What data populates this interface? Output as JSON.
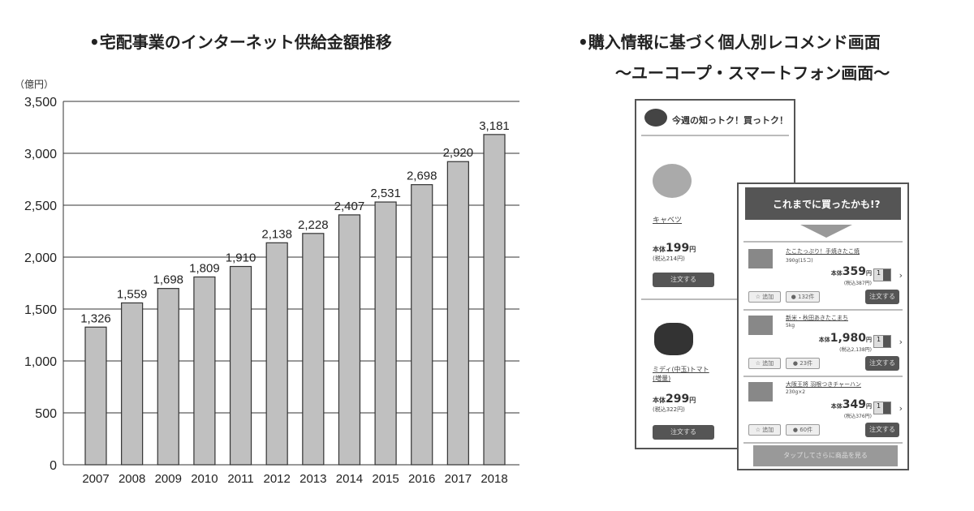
{
  "chart_data": {
    "type": "bar",
    "title": "•宅配事業のインターネット供給金額推移",
    "ylabel": "（億円）",
    "xlabel": "",
    "categories": [
      "2007",
      "2008",
      "2009",
      "2010",
      "2011",
      "2012",
      "2013",
      "2014",
      "2015",
      "2016",
      "2017",
      "2018"
    ],
    "values": [
      1326,
      1559,
      1698,
      1809,
      1910,
      2138,
      2228,
      2407,
      2531,
      2698,
      2920,
      3181
    ],
    "value_labels": [
      "1,326",
      "1,559",
      "1,698",
      "1,809",
      "1,910",
      "2,138",
      "2,228",
      "2,407",
      "2,531",
      "2,698",
      "2,920",
      "3,181"
    ],
    "ylim": [
      0,
      3500
    ],
    "yticks": [
      0,
      500,
      1000,
      1500,
      2000,
      2500,
      3000,
      3500
    ],
    "ytick_labels": [
      "0",
      "500",
      "1,000",
      "1,500",
      "2,000",
      "2,500",
      "3,000",
      "3,500"
    ],
    "grid": true,
    "bar_color": "#c0c0c0"
  },
  "right": {
    "title1": "•購入情報に基づく個人別レコメンド画面",
    "title2": "〜ユーコープ・スマートフォン画面〜",
    "back": {
      "header": "今週の知っトク！買っトク！",
      "items": [
        {
          "name": "キャベツ",
          "price_label": "本体",
          "price": "199",
          "yen": "円",
          "tax": "(税込214円)",
          "order": "注文する"
        },
        {
          "name": "ミディ(中玉)トマト(増量)",
          "price_label": "本体",
          "price": "299",
          "yen": "円",
          "tax": "(税込322円)",
          "order": "注文する"
        }
      ]
    },
    "front": {
      "header": "これまでに買ったかも!?",
      "items": [
        {
          "name": "たこたっぷり！手焼きたこ焼",
          "size": "390g(15コ)",
          "price_label": "本体",
          "price": "359",
          "yen": "円",
          "tax": "(税込387円)",
          "qty": "1",
          "fav": "追加",
          "reviews": "132件",
          "order": "注文する"
        },
        {
          "name": "新米・秋田あきたこまち",
          "size": "5kg",
          "price_label": "本体",
          "price": "1,980",
          "yen": "円",
          "tax": "(税込2,138円)",
          "qty": "1",
          "fav": "追加",
          "reviews": "23件",
          "order": "注文する"
        },
        {
          "name": "大阪王将 羽根つきチャーハン",
          "size": "230g×2",
          "price_label": "本体",
          "price": "349",
          "yen": "円",
          "tax": "(税込376円)",
          "qty": "1",
          "fav": "追加",
          "reviews": "60件",
          "order": "注文する"
        }
      ],
      "more": "タップしてさらに商品を見る"
    }
  }
}
